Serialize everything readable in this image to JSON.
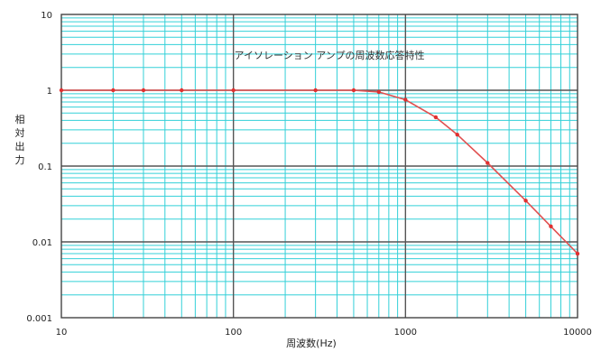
{
  "chart_data": {
    "type": "line",
    "title": "アイソレーション アンプの周波数応答特性",
    "xlabel": "周波数(Hz)",
    "ylabel": "相対出力",
    "x_scale": "log",
    "y_scale": "log",
    "xlim": [
      10,
      10000
    ],
    "ylim": [
      0.001,
      10
    ],
    "x_ticks": [
      "10",
      "100",
      "1000",
      "10000"
    ],
    "y_ticks": [
      "10",
      "1",
      "0.1",
      "0.01",
      "0.001"
    ],
    "grid": true,
    "legend": "none",
    "series": [
      {
        "x": [
          10,
          20,
          30,
          50,
          100,
          300,
          500,
          700,
          1000,
          1500,
          2000,
          3000,
          5000,
          7000,
          10000
        ],
        "y": [
          1,
          1,
          1,
          1,
          1,
          1,
          1,
          0.95,
          0.75,
          0.44,
          0.26,
          0.11,
          0.035,
          0.016,
          0.007
        ]
      }
    ],
    "colors": {
      "line": "#e05050",
      "marker": "#e03030",
      "grid_minor": "#33d0d8",
      "grid_major": "#555555",
      "frame": "#444444"
    }
  }
}
